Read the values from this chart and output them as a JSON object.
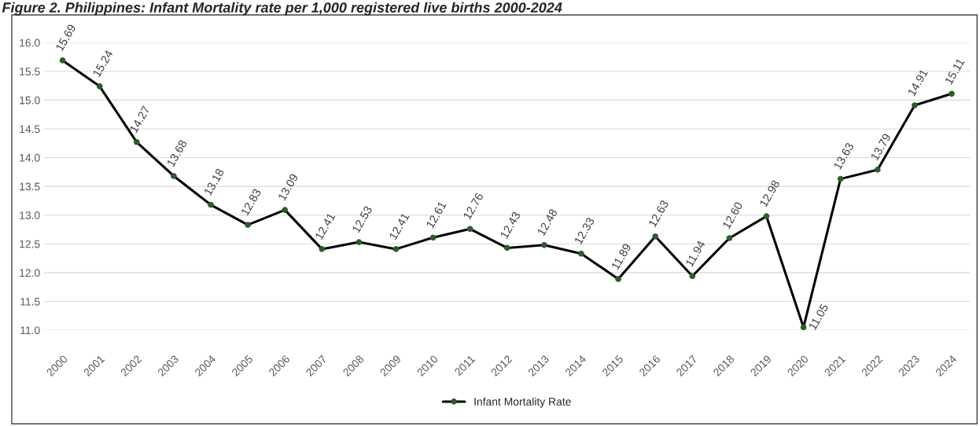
{
  "chart_data": {
    "type": "line",
    "title": "Figure 2. Philippines: Infant Mortality rate per 1,000 registered live births 2000-2024",
    "categories": [
      "2000",
      "2001",
      "2002",
      "2003",
      "2004",
      "2005",
      "2006",
      "2007",
      "2008",
      "2009",
      "2010",
      "2011",
      "2012",
      "2013",
      "2014",
      "2015",
      "2016",
      "2017",
      "2018",
      "2019",
      "2020",
      "2021",
      "2022",
      "2023",
      "2024"
    ],
    "series": [
      {
        "name": "Infant Mortality Rate",
        "color": "#000000",
        "values": [
          15.69,
          15.24,
          14.27,
          13.68,
          13.18,
          12.83,
          13.09,
          12.41,
          12.53,
          12.41,
          12.61,
          12.76,
          12.43,
          12.48,
          12.33,
          11.89,
          12.63,
          11.94,
          12.6,
          12.98,
          11.05,
          13.63,
          13.79,
          14.91,
          15.11
        ],
        "value_labels": [
          "15.69",
          "15.24",
          "14.27",
          "13.68",
          "13.18",
          "12.83",
          "13.09",
          "12.41",
          "12.53",
          "12.41",
          "12.61",
          "12.76",
          "12.43",
          "12.48",
          "12.33",
          "11.89",
          "12.63",
          "11.94",
          "12.60",
          "12.98",
          "11.05",
          "13.63",
          "13.79",
          "14.91",
          "15.11"
        ]
      }
    ],
    "ylim": [
      11.0,
      16.0
    ],
    "yticks": [
      {
        "value": 11,
        "label": "11.0"
      },
      {
        "value": 11.5,
        "label": "11.5"
      },
      {
        "value": 12,
        "label": "12.0"
      },
      {
        "value": 12.5,
        "label": "12.5"
      },
      {
        "value": 13,
        "label": "13.0"
      },
      {
        "value": 13.5,
        "label": "13.5"
      },
      {
        "value": 14,
        "label": "14.0"
      },
      {
        "value": 14.5,
        "label": "14.5"
      },
      {
        "value": 15,
        "label": "15.0"
      },
      {
        "value": 15.5,
        "label": "15.5"
      },
      {
        "value": 16,
        "label": "16.0"
      }
    ],
    "grid": "y",
    "legend": "bottom",
    "marker": "circle",
    "line_style": "solid"
  }
}
